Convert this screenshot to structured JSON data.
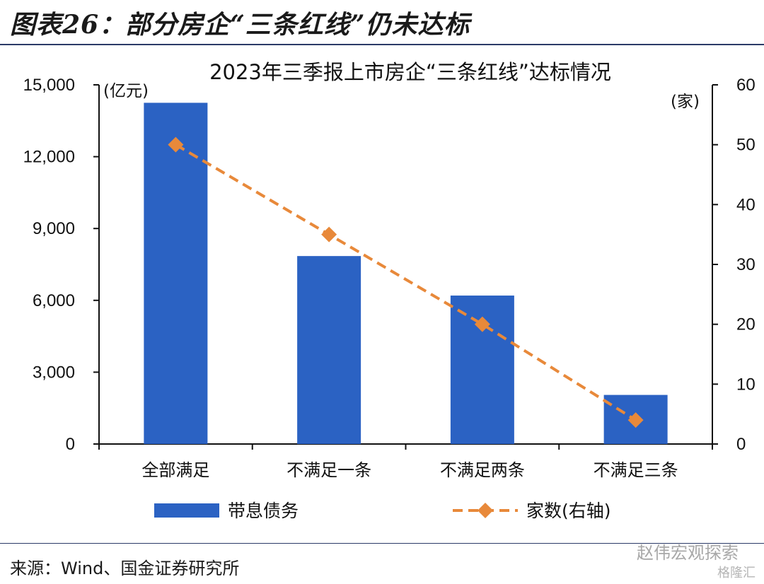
{
  "figure_title": "图表26：部分房企“三条红线”仍未达标",
  "source": "来源：Wind、国金证券研究所",
  "watermark": "赵伟宏观探索",
  "watermark2": "格隆汇",
  "colors": {
    "bar": "#2b62c3",
    "line": "#e8893a"
  },
  "chart_data": {
    "type": "bar",
    "title": "2023年三季报上市房企“三条红线”达标情况",
    "categories": [
      "全部满足",
      "不满足一条",
      "不满足两条",
      "不满足三条"
    ],
    "y_left": {
      "unit": "(亿元)",
      "ylim": [
        0,
        15000
      ],
      "ticks": [
        "0",
        "3,000",
        "6,000",
        "9,000",
        "12,000",
        "15,000"
      ]
    },
    "y_right": {
      "unit": "(家)",
      "ylim": [
        0,
        60
      ],
      "ticks": [
        "0",
        "10",
        "20",
        "30",
        "40",
        "50",
        "60"
      ]
    },
    "series": [
      {
        "name": "带息债务",
        "type": "bar",
        "axis": "left",
        "values": [
          14250,
          7850,
          6200,
          2050
        ]
      },
      {
        "name": "家数(右轴)",
        "type": "line",
        "axis": "right",
        "style": "dashed",
        "marker": "diamond",
        "values": [
          50,
          35,
          20,
          4
        ]
      }
    ],
    "legend": "bottom",
    "grid": false
  }
}
